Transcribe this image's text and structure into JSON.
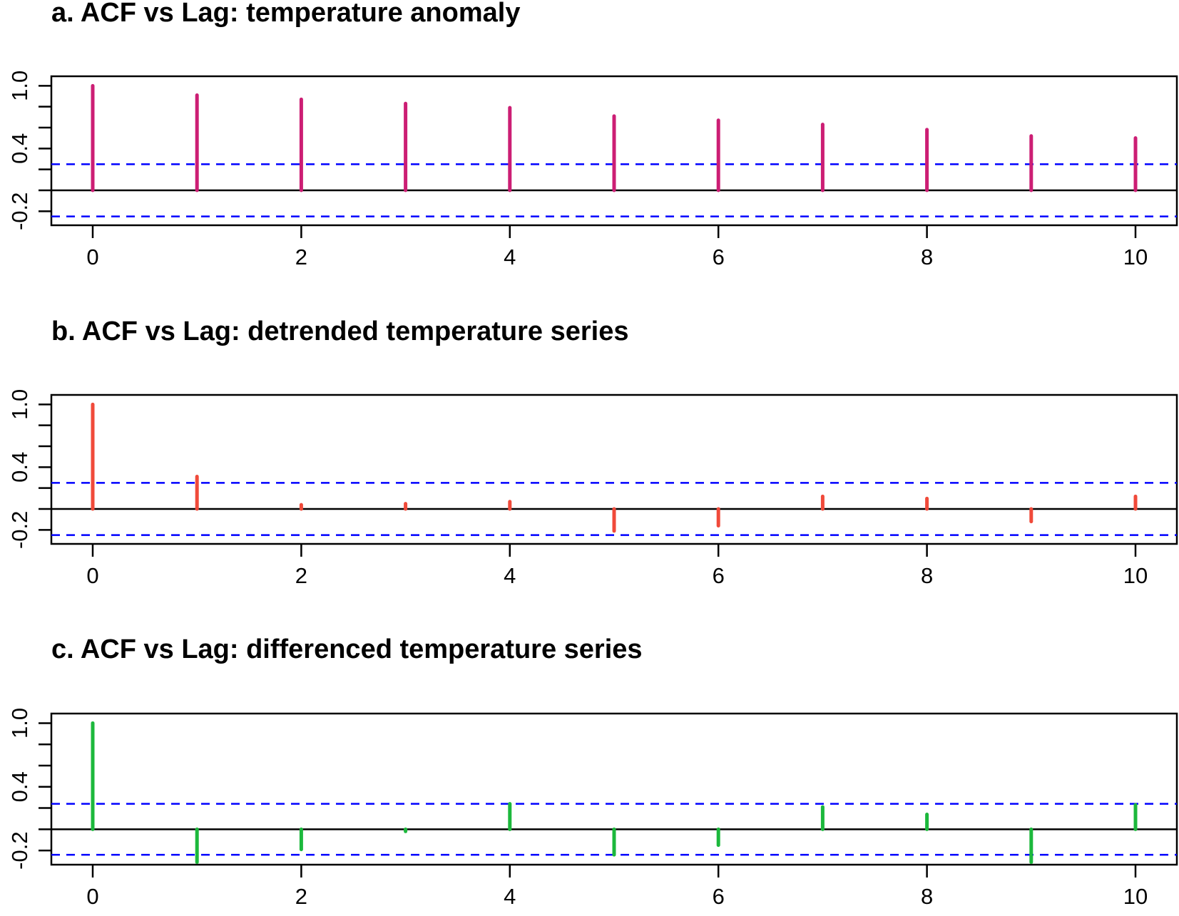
{
  "chart_data": [
    {
      "type": "bar",
      "title": "a. ACF vs Lag: temperature anomaly",
      "xlabel": "",
      "ylabel": "",
      "color": "#cc1e74",
      "lags": [
        0,
        1,
        2,
        3,
        4,
        5,
        6,
        7,
        8,
        9,
        10
      ],
      "values": [
        1.0,
        0.91,
        0.87,
        0.83,
        0.79,
        0.71,
        0.67,
        0.63,
        0.58,
        0.52,
        0.5
      ],
      "xlim": [
        0,
        10
      ],
      "ylim": [
        -0.3,
        1.05
      ],
      "xticks": [
        "0",
        "2",
        "4",
        "6",
        "8",
        "10"
      ],
      "yticks": [
        "-0.2",
        "0.4",
        "1.0"
      ],
      "confidence_bounds": [
        0.25,
        -0.25
      ],
      "bound_color": "#0000ff"
    },
    {
      "type": "bar",
      "title": "b. ACF vs Lag: detrended temperature series",
      "xlabel": "",
      "ylabel": "",
      "color": "#f04a3a",
      "lags": [
        0,
        1,
        2,
        3,
        4,
        5,
        6,
        7,
        8,
        9,
        10
      ],
      "values": [
        1.0,
        0.31,
        0.04,
        0.05,
        0.07,
        -0.21,
        -0.16,
        0.12,
        0.1,
        -0.12,
        0.12
      ],
      "xlim": [
        0,
        10
      ],
      "ylim": [
        -0.3,
        1.05
      ],
      "xticks": [
        "0",
        "2",
        "4",
        "6",
        "8",
        "10"
      ],
      "yticks": [
        "-0.2",
        "0.4",
        "1.0"
      ],
      "confidence_bounds": [
        0.25,
        -0.25
      ],
      "bound_color": "#0000ff"
    },
    {
      "type": "bar",
      "title": "c. ACF vs Lag: differenced temperature series",
      "xlabel": "",
      "ylabel": "",
      "color": "#1cb83c",
      "lags": [
        0,
        1,
        2,
        3,
        4,
        5,
        6,
        7,
        8,
        9,
        10
      ],
      "values": [
        1.0,
        -0.31,
        -0.19,
        -0.02,
        0.24,
        -0.24,
        -0.15,
        0.21,
        0.14,
        -0.31,
        0.23
      ],
      "xlim": [
        0,
        10
      ],
      "ylim": [
        -0.3,
        1.05
      ],
      "xticks": [
        "0",
        "2",
        "4",
        "6",
        "8",
        "10"
      ],
      "yticks": [
        "-0.2",
        "0.4",
        "1.0"
      ],
      "confidence_bounds": [
        0.24,
        -0.24
      ],
      "bound_color": "#0000ff"
    }
  ]
}
